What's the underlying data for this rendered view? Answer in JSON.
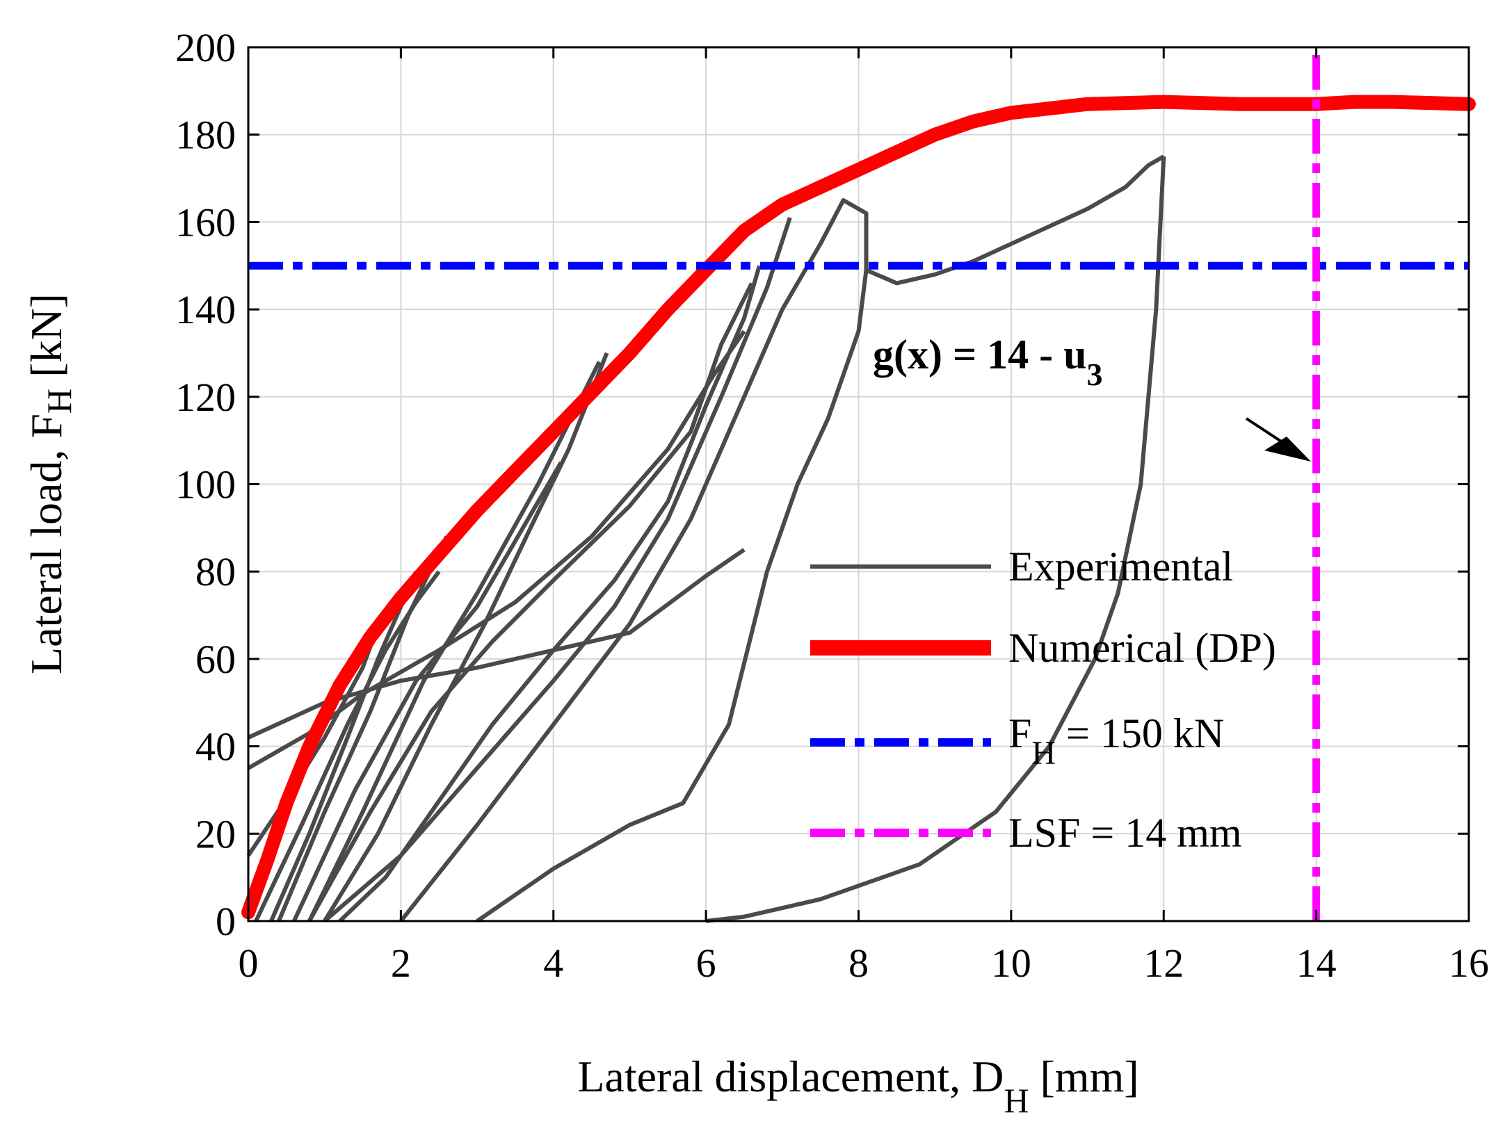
{
  "chart_data": {
    "type": "line",
    "xlabel": {
      "main": "Lateral displacement, D",
      "sub": "H",
      "unit": " [mm]"
    },
    "ylabel": {
      "main": "Lateral load, F",
      "sub": "H",
      "unit": " [kN]"
    },
    "xlim": [
      0,
      16
    ],
    "ylim": [
      0,
      200
    ],
    "xticks": [
      0,
      2,
      4,
      6,
      8,
      10,
      12,
      14,
      16
    ],
    "yticks": [
      0,
      20,
      40,
      60,
      80,
      100,
      120,
      140,
      160,
      180,
      200
    ],
    "grid": true,
    "legend_position": "bottom-right",
    "annotation": {
      "text_main": "g(x) = 14 - u",
      "text_sub": "3"
    },
    "colors": {
      "experimental": "#4a4a4a",
      "numerical": "#ff0000",
      "threshold": "#0000ff",
      "lsf": "#ff00ff",
      "grid": "#d6d6d6"
    },
    "legend": [
      {
        "key": "experimental",
        "label": "Experimental"
      },
      {
        "key": "numerical",
        "label": "Numerical (DP)"
      },
      {
        "key": "threshold",
        "label_main": "F",
        "label_sub": "H",
        "label_rest": " = 150 kN"
      },
      {
        "key": "lsf",
        "label": "LSF = 14 mm"
      }
    ],
    "series": [
      {
        "key": "numerical",
        "name": "Numerical (DP)",
        "x": [
          0,
          0.25,
          0.5,
          0.8,
          1.2,
          1.6,
          2.0,
          2.5,
          3.0,
          3.5,
          4.0,
          4.5,
          5.0,
          5.5,
          6.0,
          6.5,
          7.0,
          7.5,
          8.0,
          8.5,
          9.0,
          9.5,
          10.0,
          11.0,
          12.0,
          13.0,
          14.0,
          14.5,
          15.0,
          16.0
        ],
        "y": [
          2,
          14,
          27,
          40,
          54,
          65,
          74,
          84,
          94,
          103,
          112,
          121,
          130,
          140,
          149,
          158,
          164,
          168,
          172,
          176,
          180,
          183,
          185,
          187,
          187.5,
          187,
          187,
          187.5,
          187.5,
          187
        ]
      },
      {
        "key": "threshold",
        "name": "F_H = 150 kN",
        "x": [
          0,
          16
        ],
        "y": [
          150,
          150
        ]
      },
      {
        "key": "lsf",
        "name": "LSF = 14 mm",
        "x": [
          14,
          14
        ],
        "y": [
          0,
          200
        ]
      },
      {
        "key": "experimental",
        "x": [
          0,
          0.5,
          1.0,
          1.5,
          1.75
        ],
        "y": [
          15,
          28,
          42,
          58,
          70
        ]
      },
      {
        "key": "experimental",
        "x": [
          0.3,
          0.8,
          1.3,
          1.7,
          2.0,
          2.2
        ],
        "y": [
          0,
          20,
          42,
          60,
          72,
          80
        ]
      },
      {
        "key": "experimental",
        "x": [
          0.4,
          1.0,
          1.6,
          2.1,
          2.6
        ],
        "y": [
          0,
          25,
          48,
          70,
          88
        ]
      },
      {
        "key": "experimental",
        "x": [
          0.1,
          0.7,
          1.3,
          1.8,
          2.2,
          2.5
        ],
        "y": [
          0,
          22,
          45,
          62,
          73,
          80
        ]
      },
      {
        "key": "experimental",
        "x": [
          0,
          1.0,
          2.0,
          3.0,
          4.0,
          5.0,
          6.0,
          6.5
        ],
        "y": [
          42,
          50,
          55,
          58,
          62,
          66,
          79,
          85
        ]
      },
      {
        "key": "experimental",
        "x": [
          0,
          0.8,
          1.5,
          2.5,
          3.5,
          4.5,
          5.5,
          6.1,
          6.5
        ],
        "y": [
          35,
          43,
          52,
          62,
          73,
          88,
          108,
          125,
          135
        ]
      },
      {
        "key": "experimental",
        "x": [
          0.8,
          1.5,
          2.3,
          3.0,
          3.8,
          4.6
        ],
        "y": [
          0,
          25,
          55,
          75,
          100,
          128
        ]
      },
      {
        "key": "experimental",
        "x": [
          1.0,
          1.7,
          2.4,
          3.1,
          3.7,
          4.2,
          4.7
        ],
        "y": [
          0,
          20,
          45,
          68,
          90,
          108,
          130
        ]
      },
      {
        "key": "experimental",
        "x": [
          0.6,
          1.4,
          2.2,
          3.0,
          3.6,
          4.1
        ],
        "y": [
          0,
          30,
          55,
          72,
          90,
          105
        ]
      },
      {
        "key": "experimental",
        "x": [
          0.8,
          1.6,
          2.4,
          3.2,
          4.0,
          5.0,
          5.8,
          6.2,
          6.6
        ],
        "y": [
          0,
          25,
          48,
          64,
          78,
          95,
          112,
          132,
          146
        ]
      },
      {
        "key": "experimental",
        "x": [
          1.2,
          1.8,
          2.4,
          3.2,
          4.0,
          4.8,
          5.5,
          6.0,
          6.5,
          6.7
        ],
        "y": [
          0,
          10,
          25,
          45,
          62,
          78,
          96,
          118,
          138,
          150
        ]
      },
      {
        "key": "experimental",
        "x": [
          1.0,
          2.0,
          3.0,
          4.0,
          4.8,
          5.5,
          6.2,
          6.8,
          7.1
        ],
        "y": [
          0,
          15,
          35,
          55,
          72,
          92,
          120,
          145,
          161
        ]
      },
      {
        "key": "experimental",
        "x": [
          2.0,
          3.0,
          4.0,
          5.0,
          5.8,
          6.5,
          7.0,
          7.5,
          7.8,
          8.1,
          8.1
        ],
        "y": [
          0,
          22,
          45,
          68,
          92,
          120,
          140,
          155,
          165,
          162,
          149
        ]
      },
      {
        "key": "experimental",
        "x": [
          3.0,
          4.0,
          5.0,
          5.7,
          6.3,
          6.8,
          7.2,
          7.6,
          8.0,
          8.1
        ],
        "y": [
          0,
          12,
          22,
          27,
          45,
          80,
          100,
          115,
          135,
          149
        ]
      },
      {
        "key": "experimental",
        "x": [
          8.1,
          8.5,
          9.0,
          9.5,
          10.0,
          10.5,
          11.0,
          11.5,
          11.8,
          12.0
        ],
        "y": [
          149,
          146,
          148,
          151,
          155,
          159,
          163,
          168,
          173,
          175
        ]
      },
      {
        "key": "experimental",
        "x": [
          12.0,
          11.9,
          11.7,
          11.4,
          11.1,
          10.5,
          9.8,
          8.8,
          7.5,
          6.5,
          6.0
        ],
        "y": [
          175,
          140,
          100,
          75,
          60,
          40,
          25,
          13,
          5,
          1,
          0
        ]
      }
    ]
  }
}
